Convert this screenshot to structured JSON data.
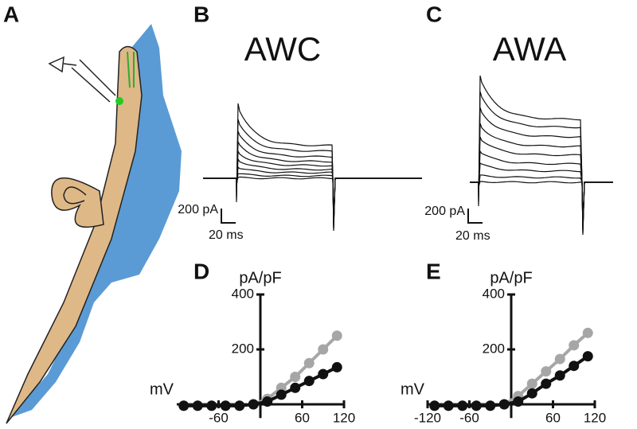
{
  "figure": {
    "panels": [
      "A",
      "B",
      "C",
      "D",
      "E"
    ],
    "titles": [
      "AWC",
      "AWA"
    ],
    "scale_bars": [
      {
        "current": "200 pA",
        "time": "20 ms"
      },
      {
        "current": "200 pA",
        "time": "20 ms"
      }
    ]
  },
  "chart_data": [
    {
      "type": "line",
      "x_label": "mV",
      "y_label": "pA/pF",
      "x": [
        -110,
        -90,
        -70,
        -50,
        -30,
        -10,
        10,
        30,
        50,
        70,
        90,
        110
      ],
      "series": [
        {
          "color": "#a6a6a6",
          "values": [
            -5,
            -5,
            -5,
            -5,
            -5,
            0,
            20,
            60,
            100,
            150,
            200,
            250
          ]
        },
        {
          "color": "#111111",
          "values": [
            -5,
            -5,
            -5,
            -5,
            -5,
            0,
            10,
            35,
            60,
            85,
            110,
            135
          ]
        }
      ],
      "xlim": [
        -120,
        120
      ],
      "ylim": [
        -50,
        400
      ],
      "xticks": [
        -60,
        60,
        120
      ],
      "yticks": [
        200,
        400
      ]
    },
    {
      "type": "line",
      "x_label": "mV",
      "y_label": "pA/pF",
      "x": [
        -110,
        -90,
        -70,
        -50,
        -30,
        -10,
        10,
        30,
        50,
        70,
        90,
        110
      ],
      "series": [
        {
          "color": "#a6a6a6",
          "values": [
            -5,
            -5,
            -5,
            -5,
            -5,
            0,
            30,
            75,
            120,
            165,
            215,
            260
          ]
        },
        {
          "color": "#111111",
          "values": [
            -5,
            -5,
            -5,
            -5,
            -5,
            0,
            10,
            40,
            75,
            105,
            140,
            175
          ]
        }
      ],
      "xlim": [
        -120,
        120
      ],
      "ylim": [
        -50,
        400
      ],
      "xticks": [
        -120,
        -60,
        60,
        120
      ],
      "yticks": [
        200,
        400
      ]
    }
  ]
}
